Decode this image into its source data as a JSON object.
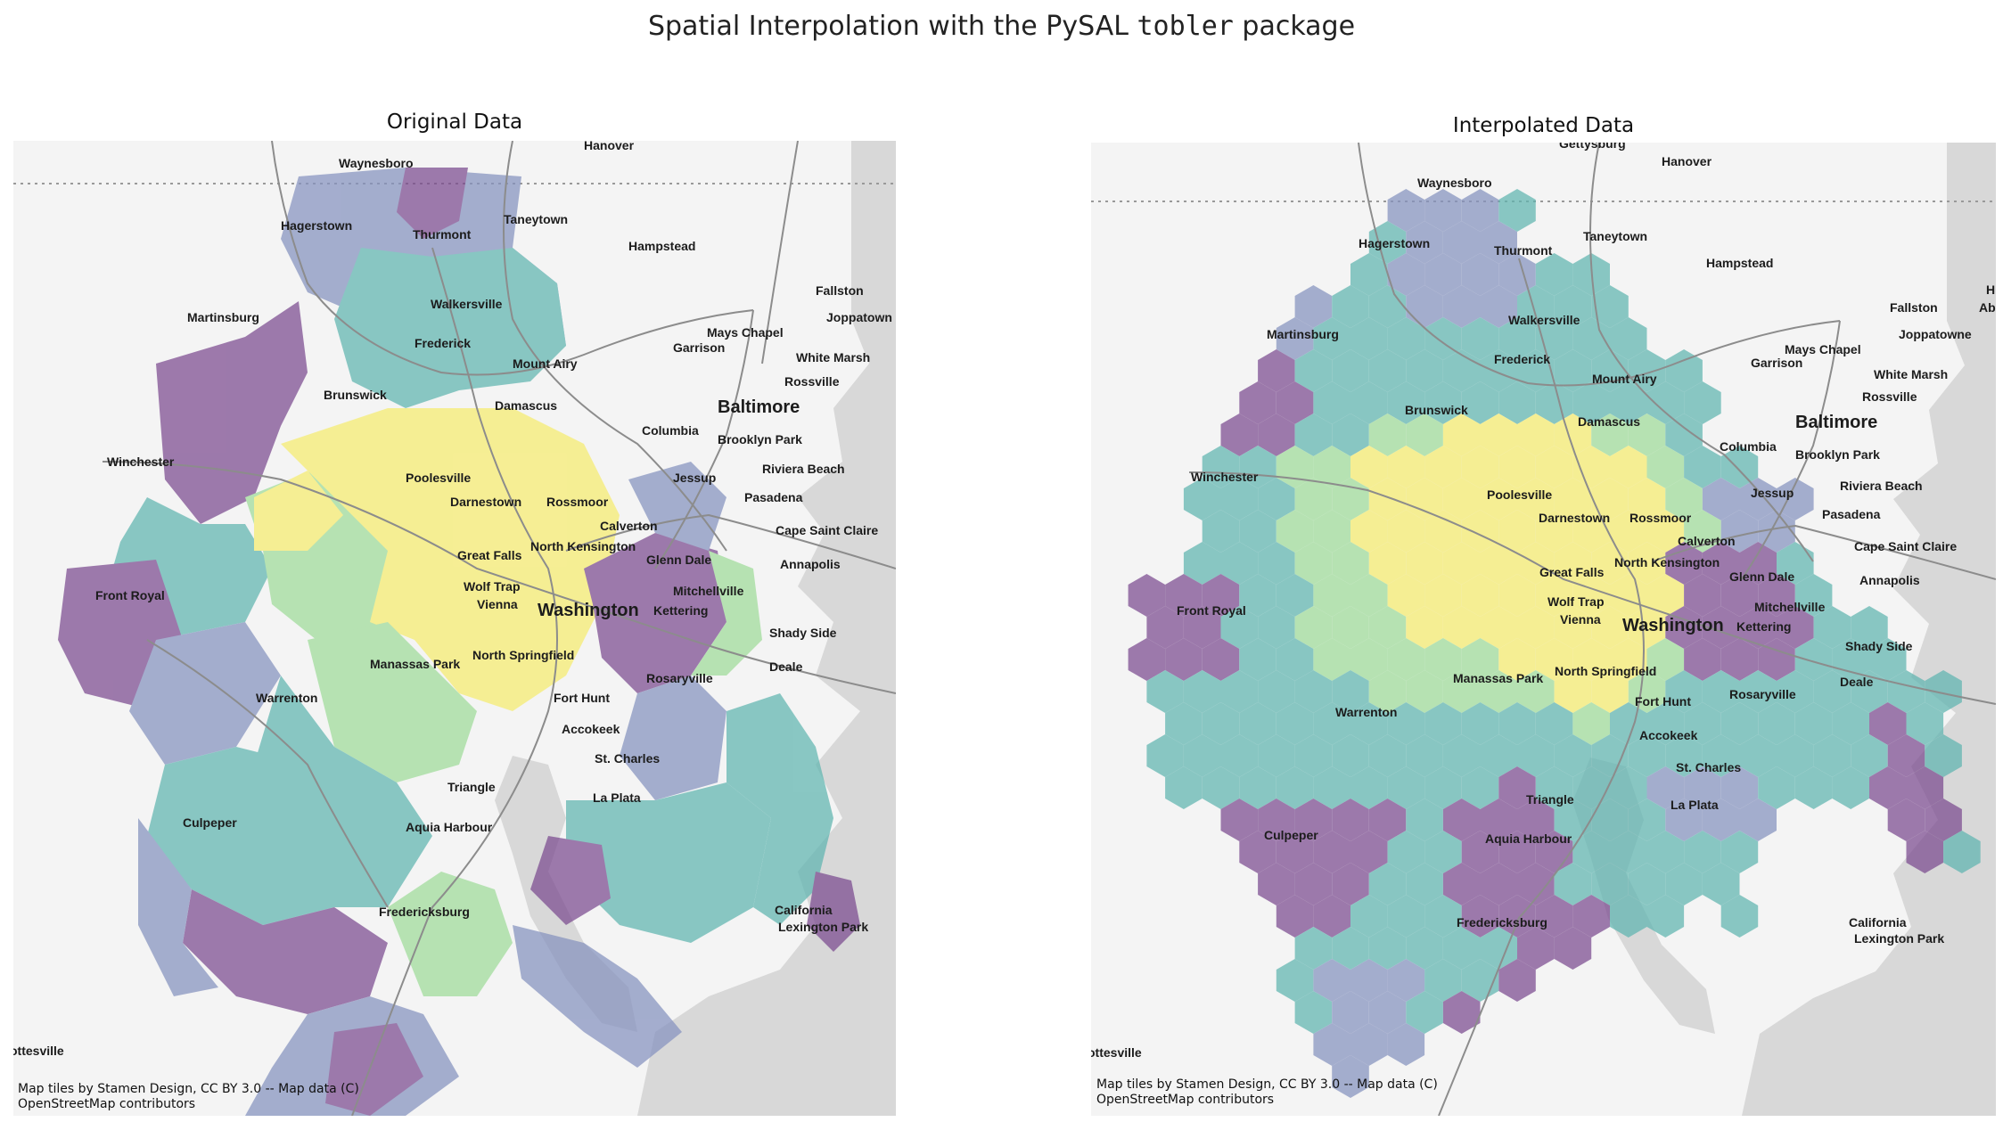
{
  "title_prefix": "Spatial Interpolation with the PySAL ",
  "title_code": "tobler",
  "title_suffix": " package",
  "panels": [
    {
      "title": "Original Data",
      "attribution": [
        "Map tiles by Stamen Design, CC BY 3.0 -- Map data (C)",
        "OpenStreetMap contributors"
      ]
    },
    {
      "title": "Interpolated Data",
      "attribution": [
        "Map tiles by Stamen Design, CC BY 3.0 -- Map data (C)",
        "OpenStreetMap contributors"
      ]
    }
  ],
  "colors": {
    "dark_purple": "#7b4a8f",
    "blue_grey": "#8592bf",
    "teal": "#5fb5b0",
    "light_green": "#9fdc9a",
    "yellow": "#f6ec6f",
    "water": "#d8d8d8",
    "basemap": "#f4f4f4",
    "roads": "#8c8c8c"
  },
  "places_left": [
    "Hanover",
    "Waynesboro",
    "Thurmont",
    "Taneytown",
    "Hagerstown",
    "Hampstead",
    "Fallston",
    "Martinsburg",
    "Walkersville",
    "Frederick",
    "Joppatown",
    "Mays Chapel",
    "Garrison",
    "White Marsh",
    "Mount Airy",
    "Rossville",
    "Brunswick",
    "Damascus",
    "Baltimore",
    "Columbia",
    "Brooklyn Park",
    "Winchester",
    "Poolesville",
    "Riviera Beach",
    "Jessup",
    "Darnestown",
    "Rossmoor",
    "Pasadena",
    "Calverton",
    "Cape Saint Claire",
    "Great Falls",
    "North Kensington",
    "Glenn Dale",
    "Annapolis",
    "Front Royal",
    "Wolf Trap",
    "Mitchellville",
    "Vienna",
    "Washington",
    "Kettering",
    "Shady Side",
    "North Springfield",
    "Manassas Park",
    "Deale",
    "Rosaryville",
    "Fort Hunt",
    "Warrenton",
    "Accokeek",
    "St. Charles",
    "Triangle",
    "La Plata",
    "Culpeper",
    "Aquia Harbour",
    "Fredericksburg",
    "California",
    "Lexington Park",
    "ottesville"
  ],
  "places_right": [
    "Gettysburg",
    "Hanover",
    "Waynesboro",
    "Thurmont",
    "Taneytown",
    "Hagerstown",
    "Hampstead",
    "Fallston",
    "H",
    "Walkersville",
    "Martinsburg",
    "Joppatowne",
    "Mays Chapel",
    "Frederick",
    "Garrison",
    "White Marsh",
    "Mount Airy",
    "Rossville",
    "Brunswick",
    "Baltimore",
    "Damascus",
    "Columbia",
    "Brooklyn Park",
    "Winchester",
    "Jessup",
    "Riviera Beach",
    "Poolesville",
    "Pasadena",
    "Darnestown",
    "Rossmoor",
    "Calverton",
    "Cape Saint Claire",
    "North Kensington",
    "Great Falls",
    "Glenn Dale",
    "Annapolis",
    "Front Royal",
    "Wolf Trap",
    "Mitchellville",
    "Vienna",
    "Washington",
    "Kettering",
    "Shady Side",
    "North Springfield",
    "Deale",
    "Manassas Park",
    "Rosaryville",
    "Fort Hunt",
    "Warrenton",
    "Accokeek",
    "St. Charles",
    "Triangle",
    "La Plata",
    "Culpeper",
    "Aquia Harbour",
    "California",
    "Fredericksburg",
    "Lexington Park",
    "ottesville",
    "Abe"
  ]
}
